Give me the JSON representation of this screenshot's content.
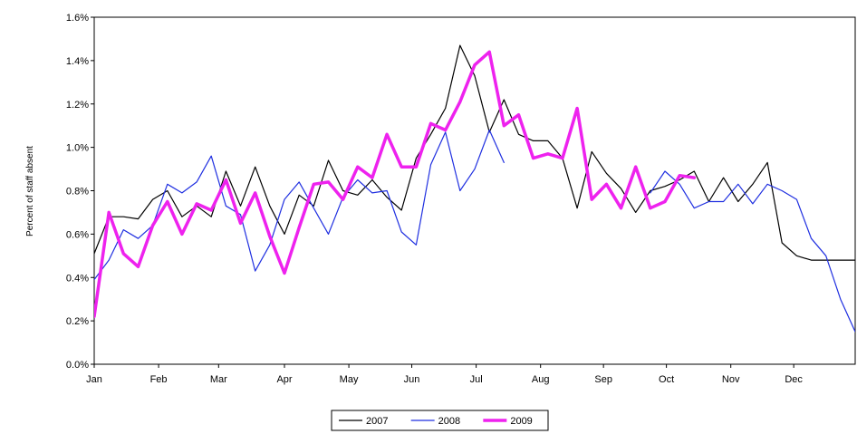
{
  "chart_data": {
    "type": "line",
    "title": "",
    "xlabel": "",
    "ylabel": "Percent of staff absent",
    "ylim": [
      0,
      0.016
    ],
    "yticks": [
      0,
      0.002,
      0.004,
      0.006,
      0.008,
      0.01,
      0.012,
      0.014,
      0.016
    ],
    "ytick_labels": [
      "0.0%",
      "0.2%",
      "0.4%",
      "0.6%",
      "0.8%",
      "1.0%",
      "1.2%",
      "1.4%",
      "1.6%"
    ],
    "xlim": [
      0,
      52
    ],
    "xticks": [
      0,
      4.4,
      8.5,
      13,
      17.4,
      21.7,
      26.1,
      30.5,
      34.8,
      39.1,
      43.5,
      47.8
    ],
    "xtick_labels": [
      "Jan",
      "Feb",
      "Mar",
      "Apr",
      "May",
      "Jun",
      "Jul",
      "Aug",
      "Sep",
      "Oct",
      "Nov",
      "Dec"
    ],
    "grid": false,
    "legend_position": "bottom",
    "series": [
      {
        "name": "2007",
        "color": "#000000",
        "width": 1.2,
        "x": [
          0,
          1,
          2,
          3,
          4,
          5,
          6,
          7,
          8,
          9,
          10,
          11,
          12,
          13,
          14,
          15,
          16,
          17,
          18,
          19,
          20,
          21,
          22,
          23,
          24,
          25,
          26,
          27,
          28,
          29,
          30,
          31,
          32,
          33,
          34,
          35,
          36,
          37,
          38,
          39,
          40,
          41,
          42,
          43,
          44,
          45,
          46,
          47,
          48,
          49,
          50,
          51,
          52
        ],
        "values": [
          0.0051,
          0.0068,
          0.0068,
          0.0067,
          0.0076,
          0.008,
          0.0068,
          0.0073,
          0.0068,
          0.0089,
          0.0073,
          0.0091,
          0.0073,
          0.006,
          0.0078,
          0.0073,
          0.0094,
          0.008,
          0.0078,
          0.0085,
          0.0077,
          0.0071,
          0.0095,
          0.0106,
          0.0118,
          0.0147,
          0.0133,
          0.0107,
          0.0122,
          0.0106,
          0.0103,
          0.0103,
          0.0095,
          0.0072,
          0.0098,
          0.0088,
          0.0081,
          0.007,
          0.008,
          0.0082,
          0.0085,
          0.0089,
          0.0075,
          0.0086,
          0.0075,
          0.0083,
          0.0093,
          0.0056,
          0.005,
          0.0048,
          0.0048,
          0.0048,
          0.0048
        ]
      },
      {
        "name": "2008",
        "color": "#1f2fe0",
        "width": 1.2,
        "segments": [
          {
            "x": [
              0,
              1,
              2,
              3,
              4,
              5,
              6,
              7,
              8,
              9,
              10,
              11,
              12,
              13,
              14,
              15,
              16,
              17,
              18,
              19,
              20,
              21,
              22,
              23,
              24,
              25,
              26,
              27,
              28
            ],
            "values": [
              0.0039,
              0.0048,
              0.0062,
              0.0058,
              0.0064,
              0.0083,
              0.0079,
              0.0084,
              0.0096,
              0.0073,
              0.0069,
              0.0043,
              0.0055,
              0.0076,
              0.0084,
              0.0072,
              0.006,
              0.0077,
              0.0085,
              0.0079,
              0.008,
              0.0061,
              0.0055,
              0.0092,
              0.0107,
              0.008,
              0.009,
              0.0108,
              0.0093
            ]
          },
          {
            "x": [
              38,
              39,
              40,
              41,
              42,
              43,
              44,
              45,
              46,
              47,
              48,
              49,
              50,
              51,
              52
            ],
            "values": [
              0.0079,
              0.0089,
              0.0083,
              0.0072,
              0.0075,
              0.0075,
              0.0083,
              0.0074,
              0.0083,
              0.008,
              0.0076,
              0.0058,
              0.005,
              0.003,
              0.0015
            ]
          }
        ]
      },
      {
        "name": "2009",
        "color": "#ee22ee",
        "width": 3.5,
        "x": [
          0,
          1,
          2,
          3,
          4,
          5,
          6,
          7,
          8,
          9,
          10,
          11,
          12,
          13,
          14,
          15,
          16,
          17,
          18,
          19,
          20,
          21,
          22,
          23,
          24,
          25,
          26,
          27,
          28,
          29,
          30,
          31,
          32,
          33,
          34,
          35,
          36,
          37,
          38,
          39,
          40,
          41
        ],
        "values": [
          0.0022,
          0.007,
          0.0051,
          0.0045,
          0.0064,
          0.0075,
          0.006,
          0.0074,
          0.0071,
          0.0085,
          0.0065,
          0.0079,
          0.0059,
          0.0042,
          0.0063,
          0.0083,
          0.0084,
          0.0076,
          0.0091,
          0.0086,
          0.0106,
          0.0091,
          0.0091,
          0.0111,
          0.0108,
          0.0121,
          0.0138,
          0.0144,
          0.011,
          0.0115,
          0.0095,
          0.0097,
          0.0095,
          0.0118,
          0.0076,
          0.0083,
          0.0072,
          0.0091,
          0.0072,
          0.0075,
          0.0087,
          0.0086
        ]
      }
    ],
    "legend": [
      {
        "label": "2007",
        "color": "#000000",
        "width": 1.2
      },
      {
        "label": "2008",
        "color": "#1f2fe0",
        "width": 1.2
      },
      {
        "label": "2009",
        "color": "#ee22ee",
        "width": 3.5
      }
    ]
  }
}
